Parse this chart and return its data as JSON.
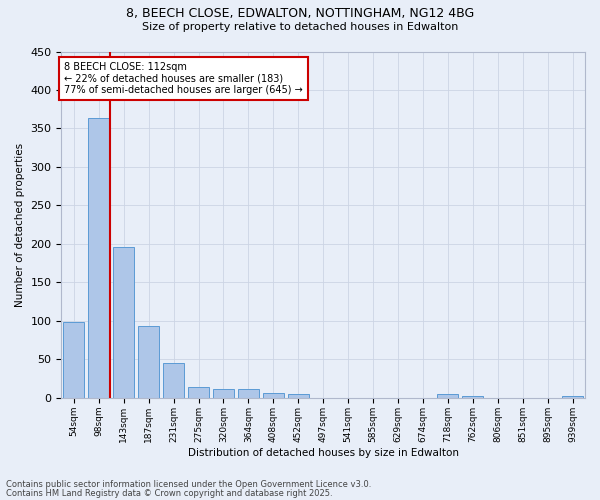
{
  "title1": "8, BEECH CLOSE, EDWALTON, NOTTINGHAM, NG12 4BG",
  "title2": "Size of property relative to detached houses in Edwalton",
  "xlabel": "Distribution of detached houses by size in Edwalton",
  "ylabel": "Number of detached properties",
  "categories": [
    "54sqm",
    "98sqm",
    "143sqm",
    "187sqm",
    "231sqm",
    "275sqm",
    "320sqm",
    "364sqm",
    "408sqm",
    "452sqm",
    "497sqm",
    "541sqm",
    "585sqm",
    "629sqm",
    "674sqm",
    "718sqm",
    "762sqm",
    "806sqm",
    "851sqm",
    "895sqm",
    "939sqm"
  ],
  "values": [
    99,
    363,
    196,
    93,
    45,
    14,
    11,
    11,
    6,
    5,
    0,
    0,
    0,
    0,
    0,
    5,
    2,
    0,
    0,
    0,
    2
  ],
  "bar_color": "#aec6e8",
  "bar_edge_color": "#5b9bd5",
  "vline_x": 1.45,
  "vline_color": "#cc0000",
  "annotation_text": "8 BEECH CLOSE: 112sqm\n← 22% of detached houses are smaller (183)\n77% of semi-detached houses are larger (645) →",
  "annotation_box_color": "#ffffff",
  "annotation_box_edge": "#cc0000",
  "footer1": "Contains HM Land Registry data © Crown copyright and database right 2025.",
  "footer2": "Contains public sector information licensed under the Open Government Licence v3.0.",
  "ylim": [
    0,
    450
  ],
  "yticks": [
    0,
    50,
    100,
    150,
    200,
    250,
    300,
    350,
    400,
    450
  ],
  "grid_color": "#ccd4e4",
  "background_color": "#e8eef8"
}
